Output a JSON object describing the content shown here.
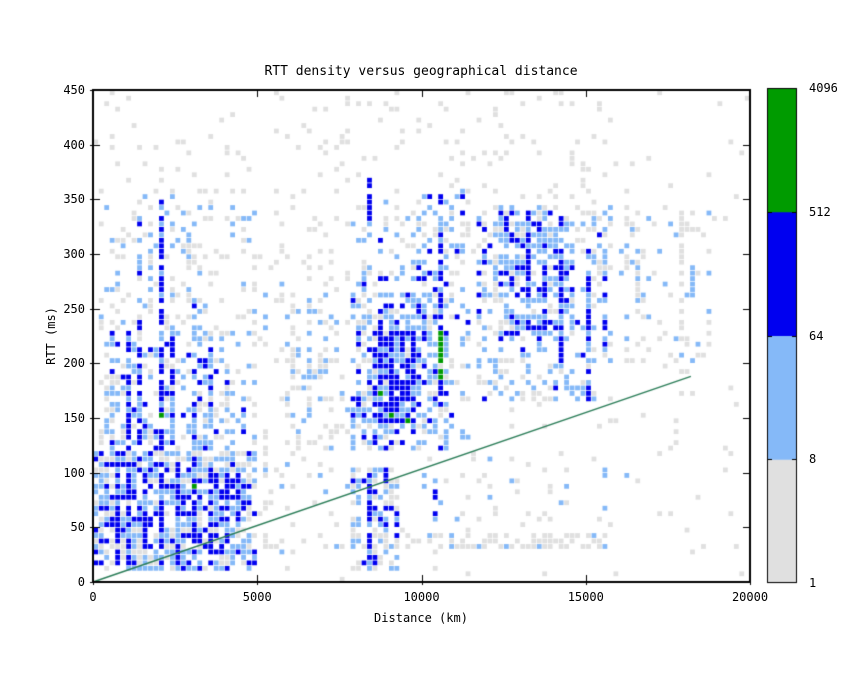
{
  "chart_data": {
    "type": "heatmap",
    "title": "RTT density versus geographical distance",
    "xlabel": "Distance (km)",
    "ylabel": "RTT (ms)",
    "xlim": [
      0,
      20000
    ],
    "ylim": [
      0,
      450
    ],
    "x_ticks": [
      0,
      5000,
      10000,
      15000,
      20000
    ],
    "y_ticks": [
      0,
      50,
      100,
      150,
      200,
      250,
      300,
      350,
      400,
      450
    ],
    "grid": {
      "cols": 120,
      "rows": 90,
      "grid_lines": false
    },
    "legend_position": "right-colorbar",
    "colors": {
      "background": "#ffffff",
      "frame": "#000000",
      "gray": "#e0e0e0",
      "light_blue": "#85b9f8",
      "blue": "#0000f0",
      "green": "#009b00",
      "line": "#2b7d58"
    },
    "color_scale": {
      "type": "log",
      "thresholds": [
        1,
        8,
        64,
        512,
        4096
      ],
      "labels": [
        "1",
        "8",
        "64",
        "512",
        "4096"
      ],
      "band_colors": [
        "#e0e0e0",
        "#85b9f8",
        "#0000f0",
        "#009b00"
      ]
    },
    "reference_line": {
      "x1": 0,
      "y1": 0,
      "x2": 18200,
      "y2": 188
    },
    "density_regions": [
      {
        "x": [
          0,
          20000
        ],
        "y": [
          0,
          450
        ],
        "p": {
          "gray": 0.022
        }
      },
      {
        "x": [
          5500,
          16500
        ],
        "y": [
          280,
          450
        ],
        "p": {
          "gray": 0.065
        }
      },
      {
        "x": [
          200,
          5000
        ],
        "y": [
          112,
          360
        ],
        "p": {
          "gray": 0.1,
          "light": 0.05
        }
      },
      {
        "x": [
          0,
          5000
        ],
        "y": [
          8,
          118
        ],
        "p": {
          "gray": 0.22,
          "light": 0.32,
          "blue": 0.14
        }
      },
      {
        "x": [
          400,
          4600
        ],
        "y": [
          48,
          112
        ],
        "p": {
          "light": 0.1,
          "blue": 0.1
        }
      },
      {
        "x": [
          400,
          4700
        ],
        "y": [
          118,
          230
        ],
        "p": {
          "gray": 0.04,
          "light": 0.15,
          "blue": 0.07
        }
      },
      {
        "x": [
          7800,
          10900
        ],
        "y": [
          118,
          265
        ],
        "p": {
          "gray": 0.13,
          "light": 0.26,
          "blue": 0.1
        }
      },
      {
        "x": [
          8500,
          9900
        ],
        "y": [
          143,
          228
        ],
        "p": {
          "light": 0.2,
          "blue": 0.36,
          "green": 0.015
        }
      },
      {
        "x": [
          7900,
          9300
        ],
        "y": [
          12,
          105
        ],
        "p": {
          "gray": 0.16,
          "light": 0.2,
          "blue": 0.1
        }
      },
      {
        "x": [
          11700,
          15800
        ],
        "y": [
          165,
          345
        ],
        "p": {
          "gray": 0.12,
          "light": 0.14,
          "blue": 0.04
        }
      },
      {
        "x": [
          12400,
          14600
        ],
        "y": [
          225,
          338
        ],
        "p": {
          "light": 0.24,
          "blue": 0.1
        }
      },
      {
        "x": [
          7800,
          15600
        ],
        "y": [
          31,
          44
        ],
        "p": {
          "gray": 0.4,
          "light": 0.09
        }
      },
      {
        "x": [
          4900,
          7800
        ],
        "y": [
          25,
          300
        ],
        "p": {
          "gray": 0.05,
          "light": 0.015
        }
      },
      {
        "x": [
          10000,
          16500
        ],
        "y": [
          45,
          115
        ],
        "p": {
          "gray": 0.05,
          "light": 0.025
        }
      },
      {
        "x": [
          16000,
          19000
        ],
        "y": [
          200,
          345
        ],
        "p": {
          "gray": 0.07,
          "light": 0.03
        }
      },
      {
        "x": [
          5800,
          7800
        ],
        "y": [
          120,
          262
        ],
        "p": {
          "gray": 0.08,
          "light": 0.05
        }
      },
      {
        "x": [
          9900,
          11500
        ],
        "y": [
          130,
          365
        ],
        "p": {
          "gray": 0.1,
          "light": 0.12,
          "blue": 0.05
        }
      },
      {
        "x": [
          300,
          4800
        ],
        "y": [
          355,
          450
        ],
        "p": {
          "gray": 0.04
        }
      },
      {
        "x": [
          7900,
          10900
        ],
        "y": [
          265,
          350
        ],
        "p": {
          "gray": 0.09,
          "light": 0.1,
          "blue": 0.02
        }
      },
      {
        "x": [
          12300,
          15500
        ],
        "y": [
          300,
          345
        ],
        "p": {
          "gray": 0.06,
          "light": 0.08
        }
      }
    ],
    "density_streaks": [
      {
        "x": 1000,
        "y": [
          120,
          232
        ],
        "p": {
          "light": 0.3,
          "blue": 0.5
        }
      },
      {
        "x": 1400,
        "y": [
          125,
          345
        ],
        "p": {
          "light": 0.3,
          "blue": 0.32
        }
      },
      {
        "x": 2000,
        "y": [
          118,
          348
        ],
        "p": {
          "light": 0.22,
          "blue": 0.58
        }
      },
      {
        "x": 2000,
        "y": [
          152,
          159
        ],
        "p": {
          "green": 0.9
        }
      },
      {
        "x": 2450,
        "y": [
          125,
          252
        ],
        "p": {
          "light": 0.3,
          "blue": 0.38
        }
      },
      {
        "x": 3050,
        "y": [
          120,
          262
        ],
        "p": {
          "light": 0.33,
          "blue": 0.33
        }
      },
      {
        "x": 3500,
        "y": [
          128,
          232
        ],
        "p": {
          "light": 0.38,
          "blue": 0.27
        }
      },
      {
        "x": 1800,
        "y": [
          230,
          345
        ],
        "p": {
          "light": 0.25,
          "gray": 0.2
        }
      },
      {
        "x": 2900,
        "y": [
          232,
          340
        ],
        "p": {
          "light": 0.2,
          "gray": 0.2
        }
      },
      {
        "x": 700,
        "y": [
          14,
          110
        ],
        "p": {
          "light": 0.3,
          "blue": 0.48
        }
      },
      {
        "x": 1150,
        "y": [
          14,
          112
        ],
        "p": {
          "light": 0.28,
          "blue": 0.55
        }
      },
      {
        "x": 1600,
        "y": [
          16,
          108
        ],
        "p": {
          "light": 0.33,
          "blue": 0.42
        }
      },
      {
        "x": 2100,
        "y": [
          14,
          110
        ],
        "p": {
          "light": 0.3,
          "blue": 0.5
        }
      },
      {
        "x": 2550,
        "y": [
          18,
          112
        ],
        "p": {
          "light": 0.3,
          "blue": 0.44
        }
      },
      {
        "x": 3100,
        "y": [
          16,
          112
        ],
        "p": {
          "light": 0.28,
          "blue": 0.52
        }
      },
      {
        "x": 3100,
        "y": [
          56,
          94
        ],
        "p": {
          "green": 0.15
        }
      },
      {
        "x": 3600,
        "y": [
          14,
          110
        ],
        "p": {
          "light": 0.3,
          "blue": 0.46
        }
      },
      {
        "x": 4000,
        "y": [
          20,
          105
        ],
        "p": {
          "light": 0.34,
          "blue": 0.32
        }
      },
      {
        "x": 4350,
        "y": [
          24,
          100
        ],
        "p": {
          "light": 0.35,
          "blue": 0.26
        }
      },
      {
        "x": 5300,
        "y": [
          30,
          262
        ],
        "p": {
          "gray": 0.45
        }
      },
      {
        "x": 6100,
        "y": [
          118,
          262
        ],
        "p": {
          "gray": 0.38
        }
      },
      {
        "x": 6550,
        "y": [
          138,
          300
        ],
        "p": {
          "gray": 0.3,
          "light": 0.08
        }
      },
      {
        "x": 8450,
        "y": [
          18,
          102
        ],
        "p": {
          "light": 0.25,
          "blue": 0.6
        }
      },
      {
        "x": 8450,
        "y": [
          328,
          382
        ],
        "p": {
          "blue": 0.62
        }
      },
      {
        "x": 8800,
        "y": [
          138,
          238
        ],
        "p": {
          "light": 0.2,
          "blue": 0.66
        }
      },
      {
        "x": 9100,
        "y": [
          143,
          232
        ],
        "p": {
          "light": 0.2,
          "blue": 0.62
        }
      },
      {
        "x": 9100,
        "y": [
          150,
          164
        ],
        "p": {
          "green": 0.7
        }
      },
      {
        "x": 8950,
        "y": [
          182,
          192
        ],
        "p": {
          "green": 0.6
        }
      },
      {
        "x": 9400,
        "y": [
          140,
          228
        ],
        "p": {
          "light": 0.25,
          "blue": 0.55
        }
      },
      {
        "x": 9700,
        "y": [
          228,
          332
        ],
        "p": {
          "light": 0.35,
          "gray": 0.18
        }
      },
      {
        "x": 10000,
        "y": [
          232,
          348
        ],
        "p": {
          "light": 0.3
        }
      },
      {
        "x": 8200,
        "y": [
          228,
          348
        ],
        "p": {
          "light": 0.26,
          "gray": 0.18
        }
      },
      {
        "x": 10650,
        "y": [
          148,
          355
        ],
        "p": {
          "light": 0.18,
          "blue": 0.5
        }
      },
      {
        "x": 10650,
        "y": [
          185,
          232
        ],
        "p": {
          "green": 0.85
        }
      },
      {
        "x": 10400,
        "y": [
          55,
          100
        ],
        "p": {
          "light": 0.3,
          "blue": 0.32
        }
      },
      {
        "x": 12100,
        "y": [
          78,
          96
        ],
        "p": {
          "light": 0.3,
          "blue": 0.25
        }
      },
      {
        "x": 12600,
        "y": [
          225,
          338
        ],
        "p": {
          "light": 0.4,
          "blue": 0.28
        }
      },
      {
        "x": 13200,
        "y": [
          228,
          338
        ],
        "p": {
          "light": 0.25,
          "blue": 0.55
        }
      },
      {
        "x": 13700,
        "y": [
          232,
          330
        ],
        "p": {
          "light": 0.35,
          "blue": 0.32
        }
      },
      {
        "x": 14300,
        "y": [
          193,
          302
        ],
        "p": {
          "light": 0.25,
          "blue": 0.5
        }
      },
      {
        "x": 15050,
        "y": [
          163,
          307
        ],
        "p": {
          "light": 0.25,
          "blue": 0.45
        }
      },
      {
        "x": 15500,
        "y": [
          198,
          312
        ],
        "p": {
          "light": 0.33,
          "blue": 0.2
        }
      },
      {
        "x": 16600,
        "y": [
          243,
          327
        ],
        "p": {
          "gray": 0.28,
          "light": 0.45
        }
      },
      {
        "x": 17900,
        "y": [
          208,
          342
        ],
        "p": {
          "gray": 0.45
        }
      },
      {
        "x": 18250,
        "y": [
          253,
          313
        ],
        "p": {
          "light": 0.65
        }
      }
    ]
  }
}
